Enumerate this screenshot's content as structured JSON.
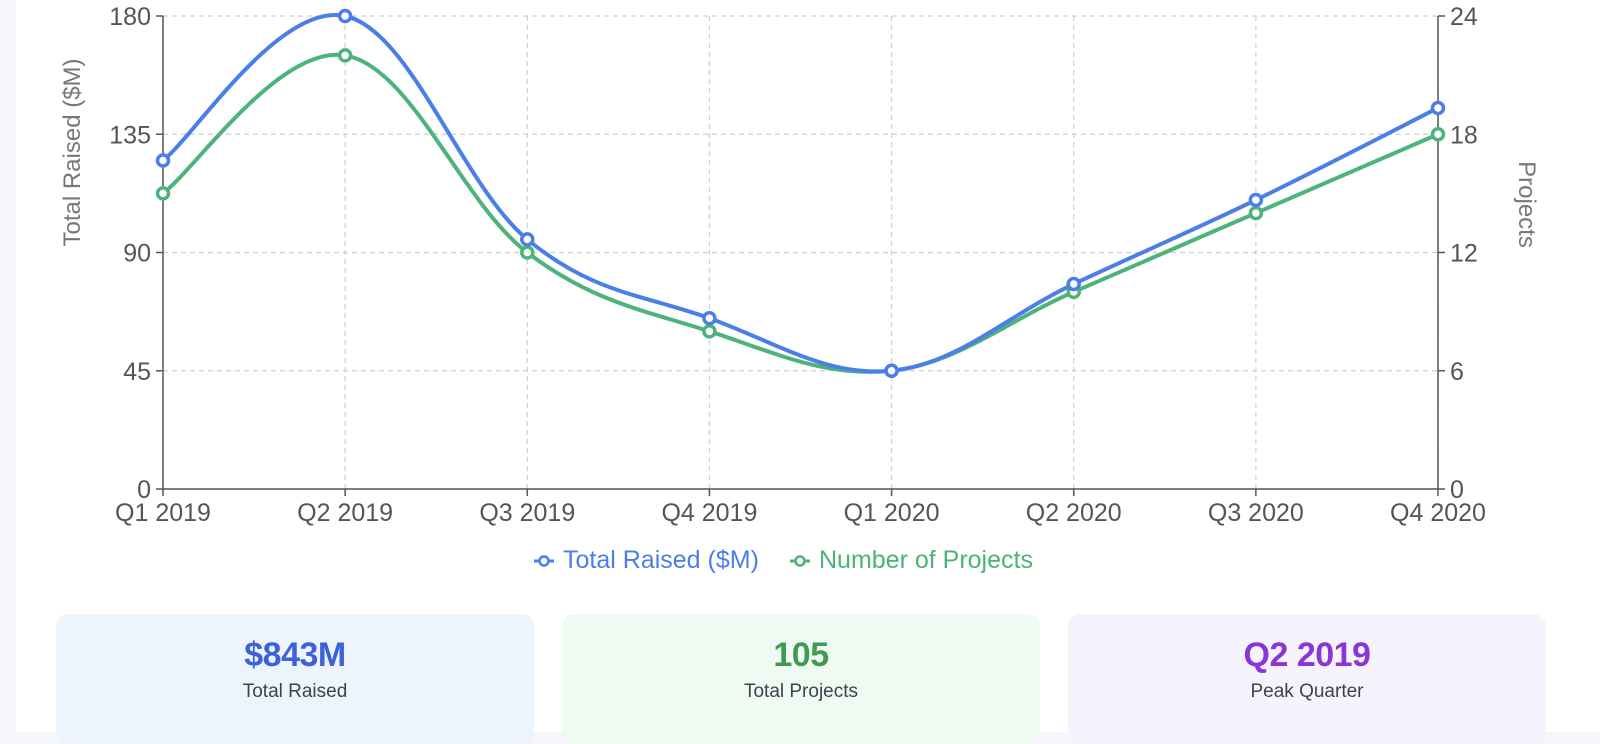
{
  "chart_data": {
    "type": "line",
    "categories": [
      "Q1 2019",
      "Q2 2019",
      "Q3 2019",
      "Q4 2019",
      "Q1 2020",
      "Q2 2020",
      "Q3 2020",
      "Q4 2020"
    ],
    "series": [
      {
        "name": "Total Raised ($M)",
        "axis": "left",
        "color": "#4a7ee8",
        "values": [
          125,
          180,
          95,
          65,
          45,
          78,
          110,
          145
        ]
      },
      {
        "name": "Number of Projects",
        "axis": "right",
        "color": "#4cb37a",
        "values": [
          15,
          22,
          12,
          8,
          6,
          10,
          14,
          18
        ]
      }
    ],
    "ylabel": "Total Raised ($M)",
    "y2label": "Projects",
    "ylim": [
      0,
      180
    ],
    "y2lim": [
      0,
      24
    ],
    "yticks": [
      "0",
      "45",
      "90",
      "135",
      "180"
    ],
    "y2ticks": [
      "0",
      "6",
      "12",
      "18",
      "24"
    ],
    "grid": true,
    "legend_position": "bottom-center",
    "curve": "smooth"
  },
  "stats": [
    {
      "value": "$843M",
      "label": "Total Raised",
      "color": "#3b62d9",
      "bg": "#eef4fe"
    },
    {
      "value": "105",
      "label": "Total Projects",
      "color": "#3f9a52",
      "bg": "#eefaf2"
    },
    {
      "value": "Q2 2019",
      "label": "Peak Quarter",
      "color": "#8a35d6",
      "bg": "#f6f3fd"
    }
  ]
}
